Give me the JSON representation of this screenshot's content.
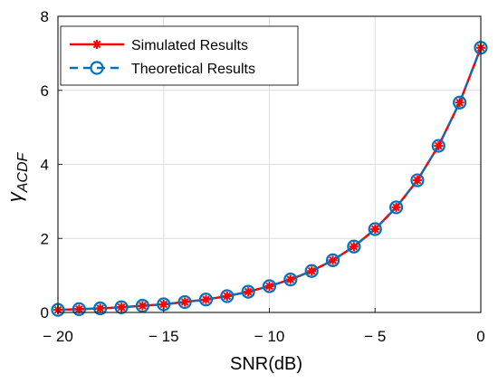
{
  "chart_data": {
    "type": "line",
    "title": "",
    "xlabel": "SNR(dB)",
    "ylabel": "γ",
    "ylabel_subscript": "ACDF",
    "xlim": [
      -20,
      0
    ],
    "ylim": [
      0,
      8
    ],
    "xticks": [
      -20,
      -15,
      -10,
      -5,
      0
    ],
    "xtick_labels": [
      "− 20",
      "− 15",
      "− 10",
      "− 5",
      "0"
    ],
    "yticks": [
      0,
      2,
      4,
      6,
      8
    ],
    "ytick_labels": [
      "0",
      "2",
      "4",
      "6",
      "8"
    ],
    "grid": true,
    "legend_position": "top-left",
    "x": [
      -20,
      -19,
      -18,
      -17,
      -16,
      -15,
      -14,
      -13,
      -12,
      -11,
      -10,
      -9,
      -8,
      -7,
      -6,
      -5,
      -4,
      -3,
      -2,
      -1,
      0
    ],
    "series": [
      {
        "name": "Simulated Results",
        "color": "#ff0000",
        "line": "solid",
        "marker": "asterisk",
        "values": [
          0.07,
          0.09,
          0.11,
          0.14,
          0.18,
          0.22,
          0.28,
          0.35,
          0.44,
          0.56,
          0.71,
          0.89,
          1.12,
          1.41,
          1.78,
          2.25,
          2.84,
          3.57,
          4.5,
          5.67,
          7.15
        ]
      },
      {
        "name": "Theoretical Results",
        "color": "#0072bd",
        "line": "dashed",
        "marker": "circle",
        "values": [
          0.07,
          0.09,
          0.11,
          0.14,
          0.18,
          0.22,
          0.28,
          0.35,
          0.44,
          0.56,
          0.71,
          0.89,
          1.12,
          1.41,
          1.78,
          2.25,
          2.84,
          3.57,
          4.5,
          5.67,
          7.15
        ]
      }
    ]
  }
}
